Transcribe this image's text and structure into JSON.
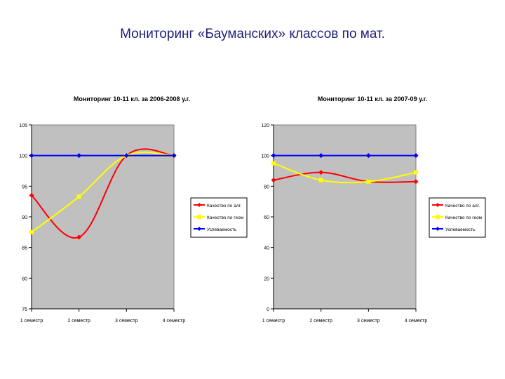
{
  "slide": {
    "title": "Мониторинг «Бауманских»  классов по мат."
  },
  "colors": {
    "plot_bg": "#c0c0c0",
    "red": "#ff0000",
    "yellow": "#ffff00",
    "blue": "#0000ff",
    "axis": "#000000"
  },
  "chart_data": [
    {
      "type": "line",
      "title": "Мониторинг 10-11 кл. за 2006-2008 у.г.",
      "categories": [
        "1 семестр",
        "2 семестр",
        "3 семестр",
        "4 семестр"
      ],
      "ylim": [
        75,
        105
      ],
      "yticks": [
        75,
        80,
        85,
        90,
        95,
        100,
        105
      ],
      "series": [
        {
          "name": "Качество по алг.",
          "color": "#ff0000",
          "values": [
            93.5,
            86.7,
            100,
            100
          ]
        },
        {
          "name": "Качество по геом",
          "color": "#ffff00",
          "values": [
            87.5,
            93.3,
            100,
            100
          ]
        },
        {
          "name": "Успеваемость",
          "color": "#0000ff",
          "values": [
            100,
            100,
            100,
            100
          ]
        }
      ],
      "grid": false,
      "legend": "right"
    },
    {
      "type": "line",
      "title": "Мониторинг 10-11 кл. за 2007-09 у.г.",
      "categories": [
        "1 семестр",
        "2 семестр",
        "3 семестр",
        "4 семестр"
      ],
      "ylim": [
        0,
        120
      ],
      "yticks": [
        0,
        20,
        40,
        60,
        80,
        100,
        120
      ],
      "series": [
        {
          "name": "Качество по алг.",
          "color": "#ff0000",
          "values": [
            84,
            89,
            83,
            83
          ]
        },
        {
          "name": "Качество по геом",
          "color": "#ffff00",
          "values": [
            95,
            84,
            83,
            89
          ]
        },
        {
          "name": "Успеваемость",
          "color": "#0000ff",
          "values": [
            100,
            100,
            100,
            100
          ]
        }
      ],
      "grid": false,
      "legend": "right"
    }
  ]
}
